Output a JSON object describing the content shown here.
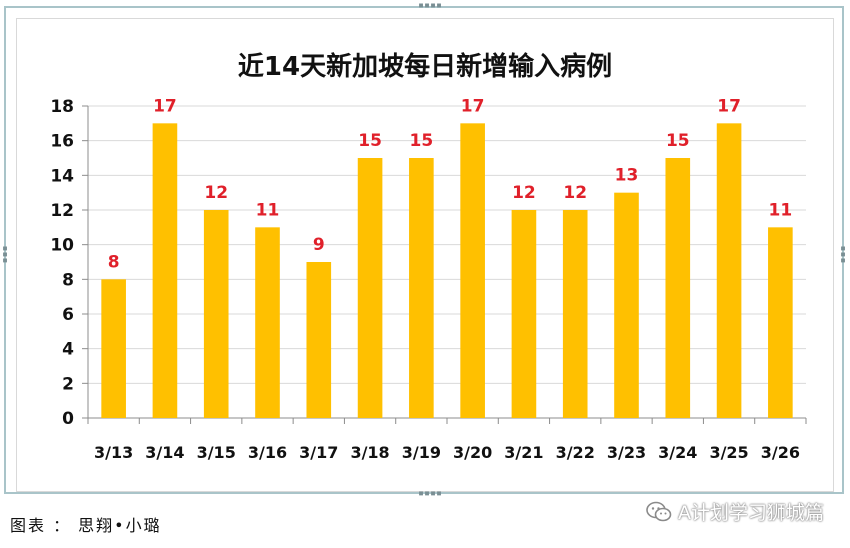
{
  "chart_data": {
    "type": "bar",
    "title": "近14天新加坡每日新增输入病例",
    "categories": [
      "3/13",
      "3/14",
      "3/15",
      "3/16",
      "3/17",
      "3/18",
      "3/19",
      "3/20",
      "3/21",
      "3/22",
      "3/23",
      "3/24",
      "3/25",
      "3/26"
    ],
    "values": [
      8,
      17,
      12,
      11,
      9,
      15,
      15,
      17,
      12,
      12,
      13,
      15,
      17,
      11
    ],
    "ylim": [
      0,
      18
    ],
    "yticks": [
      0,
      2,
      4,
      6,
      8,
      10,
      12,
      14,
      16,
      18
    ],
    "grid": true,
    "bar_color": "#FFC000",
    "label_color": "#E0202A"
  },
  "caption": "图表 ： 思翔•小璐",
  "watermark": {
    "text": "A计划学习狮城篇",
    "icon": "wechat-icon"
  }
}
